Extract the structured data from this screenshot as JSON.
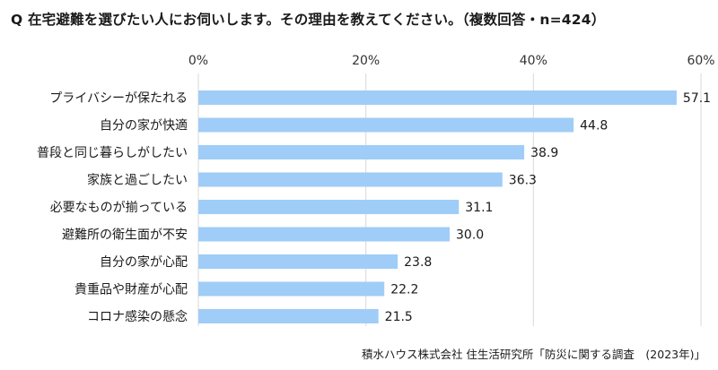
{
  "chart_data": {
    "type": "bar",
    "orientation": "horizontal",
    "title": "Q 在宅避難を選びたい人にお伺いします。その理由を教えてください。（複数回答・n=424）",
    "categories": [
      "プライバシーが保たれる",
      "自分の家が快適",
      "普段と同じ暮らしがしたい",
      "家族と過ごしたい",
      "必要なものが揃っている",
      "避難所の衛生面が不安",
      "自分の家が心配",
      "貴重品や財産が心配",
      "コロナ感染の懸念"
    ],
    "values": [
      57.1,
      44.8,
      38.9,
      36.3,
      31.1,
      30.0,
      23.8,
      22.2,
      21.5
    ],
    "value_labels": [
      "57.1",
      "44.8",
      "38.9",
      "36.3",
      "31.1",
      "30.0",
      "23.8",
      "22.2",
      "21.5"
    ],
    "xlim": [
      0,
      60
    ],
    "xticks": [
      0,
      20,
      40,
      60
    ],
    "xtick_labels": [
      "0%",
      "20%",
      "40%",
      "60%"
    ],
    "x_axis_position": "top",
    "grid": true,
    "bar_color": "#9fcdf7",
    "grid_color": "#d9d9d9"
  },
  "source": "積水ハウス株式会社 住生活研究所「防災に関する調査　(2023年)」"
}
